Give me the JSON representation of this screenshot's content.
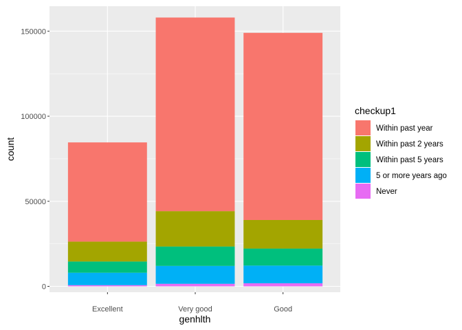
{
  "chart_data": {
    "type": "bar",
    "stacked": true,
    "xlabel": "genhlth",
    "ylabel": "count",
    "categories": [
      "Excellent",
      "Very good",
      "Good"
    ],
    "ylim": [
      0,
      165000
    ],
    "yticks": [
      0,
      50000,
      100000,
      150000
    ],
    "ytick_labels": [
      "0",
      "50000",
      "100000",
      "150000"
    ],
    "grid": true,
    "legend_title": "checkup1",
    "legend_position": "right",
    "series": [
      {
        "name": "Never",
        "color": "#E76BF3",
        "values": [
          700,
          1500,
          1800
        ]
      },
      {
        "name": "5 or more years ago",
        "color": "#00B0F6",
        "values": [
          7300,
          10500,
          10400
        ]
      },
      {
        "name": "Within past 5 years",
        "color": "#00BF7D",
        "values": [
          6600,
          11400,
          10000
        ]
      },
      {
        "name": "Within past 2 years",
        "color": "#A3A500",
        "values": [
          11700,
          20800,
          16800
        ]
      },
      {
        "name": "Within past year",
        "color": "#F8766D",
        "values": [
          58300,
          113800,
          110000
        ]
      }
    ],
    "legend_order": [
      "Within past year",
      "Within past 2 years",
      "Within past 5 years",
      "5 or more years ago",
      "Never"
    ]
  }
}
